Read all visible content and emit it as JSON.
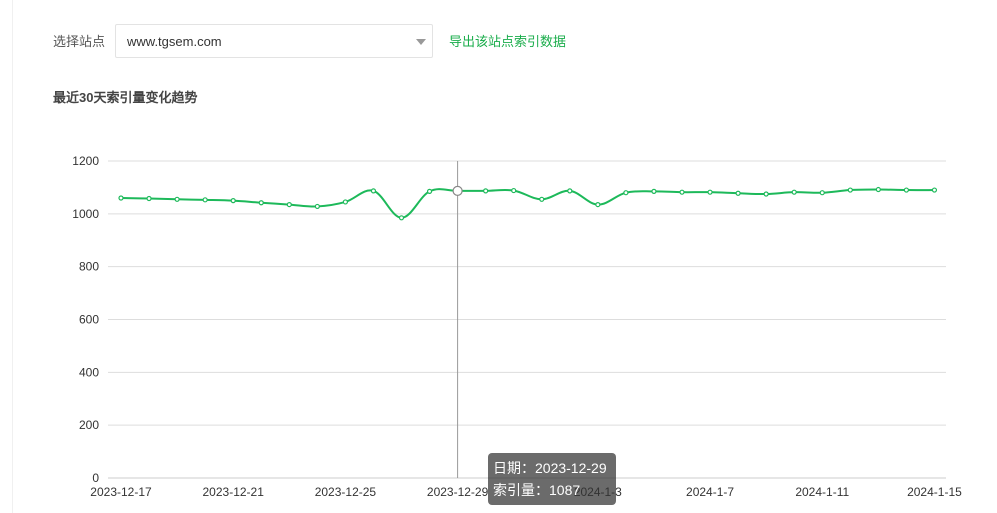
{
  "filter": {
    "label": "选择站点",
    "selected_site": "www.tgsem.com",
    "export_link": "导出该站点索引数据"
  },
  "section": {
    "title": "最近30天索引量变化趋势"
  },
  "chart_data": {
    "type": "line",
    "title": "",
    "xlabel": "",
    "ylabel": "",
    "ylim": [
      0,
      1200
    ],
    "yticks": [
      0,
      200,
      400,
      600,
      800,
      1000,
      1200
    ],
    "grid": true,
    "x": [
      "2023-12-17",
      "2023-12-18",
      "2023-12-19",
      "2023-12-20",
      "2023-12-21",
      "2023-12-22",
      "2023-12-23",
      "2023-12-24",
      "2023-12-25",
      "2023-12-26",
      "2023-12-27",
      "2023-12-28",
      "2023-12-29",
      "2023-12-30",
      "2023-12-31",
      "2024-1-1",
      "2024-1-2",
      "2024-1-3",
      "2024-1-4",
      "2024-1-5",
      "2024-1-6",
      "2024-1-7",
      "2024-1-8",
      "2024-1-9",
      "2024-1-10",
      "2024-1-11",
      "2024-1-12",
      "2024-1-13",
      "2024-1-14",
      "2024-1-15"
    ],
    "xtick_labels": [
      "2023-12-17",
      "2023-12-21",
      "2023-12-25",
      "2023-12-29",
      "2024-1-3",
      "2024-1-7",
      "2024-1-11",
      "2024-1-15"
    ],
    "series": [
      {
        "values": [
          1060,
          1058,
          1055,
          1053,
          1050,
          1042,
          1035,
          1028,
          1045,
          1087,
          985,
          1085,
          1087,
          1087,
          1088,
          1055,
          1087,
          1035,
          1080,
          1085,
          1082,
          1082,
          1078,
          1075,
          1082,
          1080,
          1090,
          1092,
          1090,
          1090
        ]
      }
    ],
    "line_color": "#1db95a",
    "highlight_index": 12
  },
  "tooltip": {
    "date_line": "日期：2023-12-29",
    "value_line": "索引量：1087"
  }
}
